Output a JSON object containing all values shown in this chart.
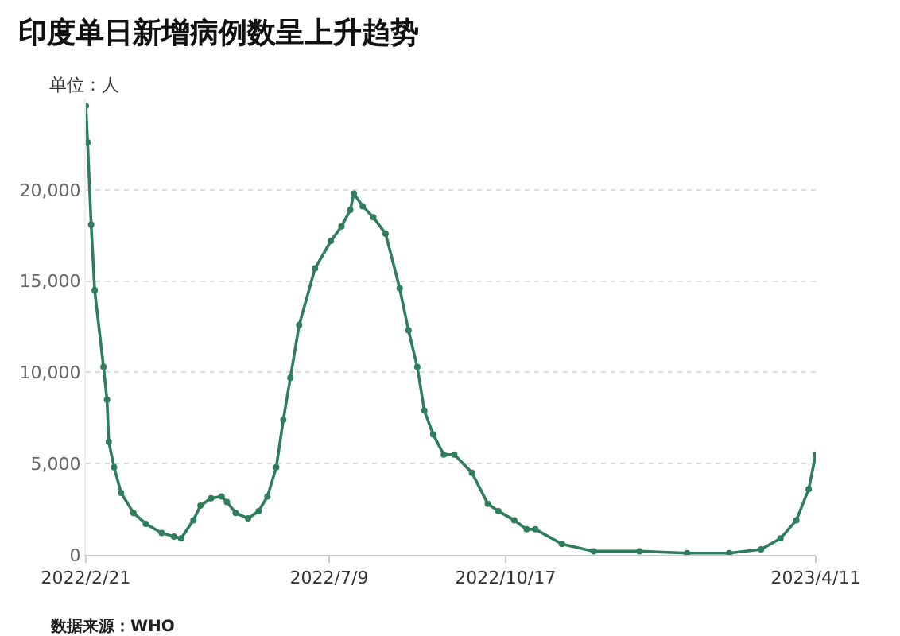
{
  "chart_data": {
    "type": "line",
    "title": "印度单日新增病例数呈上升趋势",
    "annotations": [
      "单位：人",
      "数据来源：WHO"
    ],
    "x": [
      "2022-02-21",
      "2022-02-22",
      "2022-02-24",
      "2022-02-26",
      "2022-03-03",
      "2022-03-05",
      "2022-03-06",
      "2022-03-09",
      "2022-03-13",
      "2022-03-20",
      "2022-03-27",
      "2022-04-05",
      "2022-04-12",
      "2022-04-16",
      "2022-04-23",
      "2022-04-27",
      "2022-05-03",
      "2022-05-09",
      "2022-05-12",
      "2022-05-17",
      "2022-05-24",
      "2022-05-30",
      "2022-06-04",
      "2022-06-09",
      "2022-06-13",
      "2022-06-17",
      "2022-06-22",
      "2022-07-01",
      "2022-07-10",
      "2022-07-16",
      "2022-07-21",
      "2022-07-23",
      "2022-07-28",
      "2022-08-03",
      "2022-08-10",
      "2022-08-18",
      "2022-08-23",
      "2022-08-28",
      "2022-09-01",
      "2022-09-06",
      "2022-09-12",
      "2022-09-18",
      "2022-09-28",
      "2022-10-07",
      "2022-10-13",
      "2022-10-22",
      "2022-10-29",
      "2022-11-03",
      "2022-11-18",
      "2022-12-06",
      "2023-01-01",
      "2023-01-28",
      "2023-02-21",
      "2023-03-11",
      "2023-03-22",
      "2023-03-31",
      "2023-04-07",
      "2023-04-11"
    ],
    "series": [
      {
        "color": "#2e7d5b",
        "values": [
          24600,
          22600,
          18100,
          14500,
          10300,
          8500,
          6200,
          4800,
          3400,
          2300,
          1700,
          1200,
          1000,
          900,
          1900,
          2700,
          3100,
          3200,
          2900,
          2300,
          2000,
          2400,
          3200,
          4800,
          7400,
          9700,
          12600,
          15700,
          17200,
          18000,
          18900,
          19800,
          19100,
          18500,
          17600,
          14600,
          12300,
          10300,
          7900,
          6600,
          5500,
          5500,
          4500,
          2800,
          2400,
          1900,
          1400,
          1400,
          600,
          200,
          200,
          100,
          100,
          300,
          900,
          1900,
          3600,
          5500
        ]
      }
    ],
    "xlim": [
      "2022-02-21",
      "2023-04-11"
    ],
    "xticks": [
      {
        "value": "2022-02-21",
        "label": "2022/2/21"
      },
      {
        "value": "2022-07-09",
        "label": "2022/7/9"
      },
      {
        "value": "2022-10-17",
        "label": "2022/10/17"
      },
      {
        "value": "2023-04-11",
        "label": "2023/4/11"
      }
    ],
    "ylim": [
      0,
      25000
    ],
    "yticks": [
      {
        "value": 0,
        "label": "0"
      },
      {
        "value": 5000,
        "label": "5,000"
      },
      {
        "value": 10000,
        "label": "10,000"
      },
      {
        "value": 15000,
        "label": "15,000"
      },
      {
        "value": 20000,
        "label": "20,000"
      }
    ],
    "grid": "y",
    "marker": "circle",
    "line_style": "solid"
  }
}
